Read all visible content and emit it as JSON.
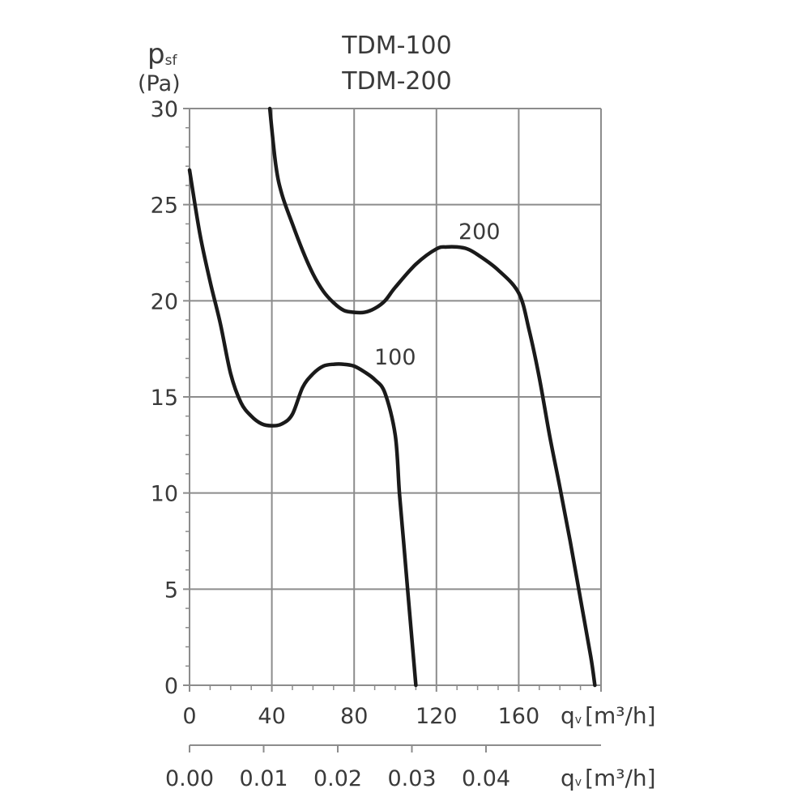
{
  "chart_data": {
    "type": "line",
    "title": [
      "TDM-100",
      "TDM-200"
    ],
    "ylabel": "psf",
    "ylabel_sub": "sf",
    "ylabel_main": "p",
    "yunit": "(Pa)",
    "xlabel": "qv [m³/h]",
    "xlabel_secondary": "qv [m³/h]",
    "xlim": [
      0,
      200
    ],
    "ylim": [
      0,
      30
    ],
    "grid": true,
    "y_ticks": [
      0,
      5,
      10,
      15,
      20,
      25,
      30
    ],
    "x_ticks": [
      0,
      40,
      80,
      120,
      160
    ],
    "x_ticks_secondary": [
      "0.00",
      "0.01",
      "0.02",
      "0.03",
      "0.04"
    ],
    "series": [
      {
        "name": "100",
        "label": "100",
        "x": [
          0,
          5,
          10,
          15,
          20,
          25,
          30,
          35,
          40,
          45,
          50,
          55,
          60,
          65,
          70,
          75,
          80,
          85,
          90,
          95,
          100,
          102,
          104,
          106,
          108,
          110
        ],
        "y": [
          26.8,
          23.5,
          21.0,
          18.8,
          16.2,
          14.7,
          14.0,
          13.6,
          13.5,
          13.6,
          14.1,
          15.5,
          16.2,
          16.6,
          16.7,
          16.7,
          16.6,
          16.3,
          15.9,
          15.2,
          13.0,
          10.0,
          7.5,
          5.0,
          2.5,
          0.0
        ]
      },
      {
        "name": "200",
        "label": "200",
        "x": [
          39,
          42,
          45,
          50,
          55,
          60,
          65,
          70,
          75,
          80,
          85,
          90,
          95,
          100,
          110,
          120,
          125,
          130,
          135,
          140,
          150,
          160,
          165,
          170,
          175,
          180,
          185,
          190,
          195,
          197
        ],
        "y": [
          30.0,
          27.0,
          25.5,
          24.0,
          22.6,
          21.4,
          20.5,
          19.9,
          19.5,
          19.4,
          19.4,
          19.6,
          20.0,
          20.7,
          21.9,
          22.7,
          22.8,
          22.8,
          22.7,
          22.4,
          21.6,
          20.4,
          18.5,
          16.0,
          13.0,
          10.3,
          7.5,
          4.5,
          1.5,
          0.0
        ]
      }
    ],
    "series_labels": [
      {
        "text": "100",
        "x": 92,
        "y": 17.0
      },
      {
        "text": "200",
        "x": 142,
        "y": 23.8
      }
    ]
  },
  "labels": {
    "title_line1": "TDM-100",
    "title_line2": "TDM-200",
    "y_axis_main": "p",
    "y_axis_sub": "sf",
    "y_axis_unit": "(Pa)",
    "x_axis_q": "q",
    "x_axis_q_sub": "v",
    "x_axis_unit": "[m³/h]",
    "x2_axis_q": "q",
    "x2_axis_q_sub": "v",
    "x2_axis_unit": "[m³/h]",
    "curve_100": "100",
    "curve_200": "200"
  },
  "colors": {
    "grid": "#8c8c8c",
    "curve": "#1a1a1a",
    "text": "#3a3a3a"
  }
}
